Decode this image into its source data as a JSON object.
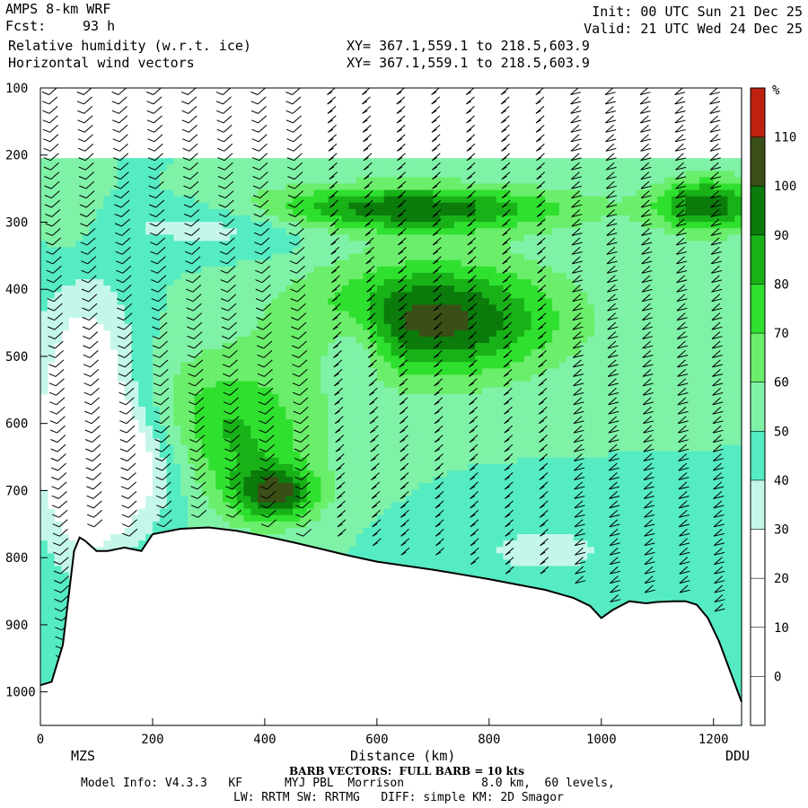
{
  "header": {
    "model": "AMPS 8-km WRF",
    "fcst_label": "Fcst:",
    "fcst_value": "93 h",
    "field1": "Relative humidity (w.r.t. ice)",
    "field2": "Horizontal wind vectors",
    "xy1": "XY= 367.1,559.1 to 218.5,603.9",
    "xy2": "XY= 367.1,559.1 to 218.5,603.9",
    "init": "Init: 00 UTC Sun 21 Dec 25",
    "valid": "Valid: 21 UTC Wed 24 Dec 25"
  },
  "footer": {
    "station_left": "MZS",
    "station_right": "DDU",
    "barb_note": "BARB VECTORS:  FULL BARB = 10 kts",
    "model_info": "Model Info: V4.3.3   KF      MYJ PBL  Morrison           8.0 km,  60 levels,",
    "physics": "LW: RRTM SW: RRTMG   DIFF: simple KM: 2D Smagor"
  },
  "chart_data": {
    "type": "heatmap",
    "title": "Relative humidity (w.r.t. ice)",
    "xlabel": "Distance (km)",
    "ylabel": "",
    "xlim": [
      0,
      1250
    ],
    "ylim": [
      1050,
      100
    ],
    "x_ticks": [
      0,
      200,
      400,
      600,
      800,
      1000,
      1200
    ],
    "y_ticks": [
      100,
      200,
      300,
      400,
      500,
      600,
      700,
      800,
      900,
      1000
    ],
    "colorbar": {
      "unit": "%",
      "ticks": [
        0,
        10,
        20,
        30,
        40,
        50,
        60,
        70,
        80,
        90,
        100,
        110
      ],
      "levels": [
        {
          "min": -10,
          "max": 30,
          "color": "#ffffff"
        },
        {
          "min": 30,
          "max": 40,
          "color": "#c4f7ea"
        },
        {
          "min": 40,
          "max": 50,
          "color": "#55ebc3"
        },
        {
          "min": 50,
          "max": 60,
          "color": "#7ff2a8"
        },
        {
          "min": 60,
          "max": 70,
          "color": "#6bee6b"
        },
        {
          "min": 70,
          "max": 80,
          "color": "#2fe02f"
        },
        {
          "min": 80,
          "max": 90,
          "color": "#18b118"
        },
        {
          "min": 90,
          "max": 100,
          "color": "#0b7b0b"
        },
        {
          "min": 100,
          "max": 110,
          "color": "#3a4e17"
        },
        {
          "min": 110,
          "max": 120,
          "color": "#c0200f"
        }
      ]
    },
    "terrain_profile": {
      "x_km": [
        0,
        20,
        40,
        60,
        70,
        80,
        100,
        120,
        150,
        180,
        200,
        250,
        300,
        350,
        400,
        450,
        500,
        550,
        600,
        650,
        700,
        750,
        800,
        850,
        900,
        950,
        980,
        1000,
        1020,
        1050,
        1080,
        1100,
        1130,
        1150,
        1170,
        1190,
        1210,
        1230,
        1250
      ],
      "pressure_hpa": [
        990,
        985,
        930,
        790,
        770,
        775,
        790,
        790,
        785,
        790,
        765,
        757,
        755,
        760,
        768,
        777,
        787,
        797,
        806,
        812,
        818,
        825,
        832,
        840,
        848,
        860,
        872,
        890,
        878,
        865,
        868,
        866,
        865,
        865,
        870,
        890,
        925,
        970,
        1015
      ]
    }
  }
}
